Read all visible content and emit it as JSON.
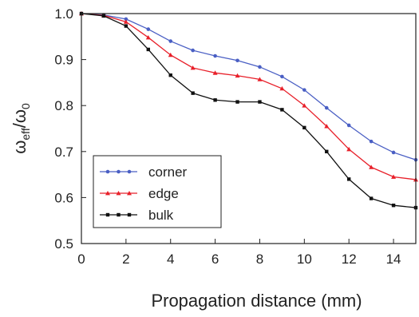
{
  "chart_data": {
    "type": "line",
    "xlabel": "Propagation distance (mm)",
    "ylabel": {
      "main": "ω",
      "sub1": "eff",
      "slash": "/ω",
      "sub2": "0"
    },
    "xlim": [
      0,
      15
    ],
    "ylim": [
      0.5,
      1.0
    ],
    "xticks": [
      0,
      2,
      4,
      6,
      8,
      10,
      12,
      14
    ],
    "yticks": [
      0.5,
      0.6,
      0.7,
      0.8,
      0.9,
      1.0
    ],
    "grid": false,
    "legend_position": "bottom-left",
    "x": [
      0,
      1,
      2,
      3,
      4,
      5,
      6,
      7,
      8,
      9,
      10,
      11,
      12,
      13,
      14,
      15
    ],
    "series": [
      {
        "name": "corner",
        "color": "#4a5fc4",
        "marker": "circle",
        "values": [
          1.0,
          0.997,
          0.988,
          0.966,
          0.94,
          0.92,
          0.908,
          0.898,
          0.884,
          0.863,
          0.834,
          0.795,
          0.757,
          0.722,
          0.698,
          0.682
        ]
      },
      {
        "name": "edge",
        "color": "#e8202a",
        "marker": "triangle",
        "values": [
          1.0,
          0.996,
          0.982,
          0.948,
          0.91,
          0.882,
          0.871,
          0.865,
          0.857,
          0.837,
          0.8,
          0.755,
          0.705,
          0.666,
          0.645,
          0.639
        ]
      },
      {
        "name": "bulk",
        "color": "#111111",
        "marker": "square",
        "values": [
          1.0,
          0.995,
          0.973,
          0.922,
          0.866,
          0.827,
          0.812,
          0.808,
          0.808,
          0.791,
          0.752,
          0.7,
          0.64,
          0.598,
          0.583,
          0.578
        ]
      }
    ]
  }
}
